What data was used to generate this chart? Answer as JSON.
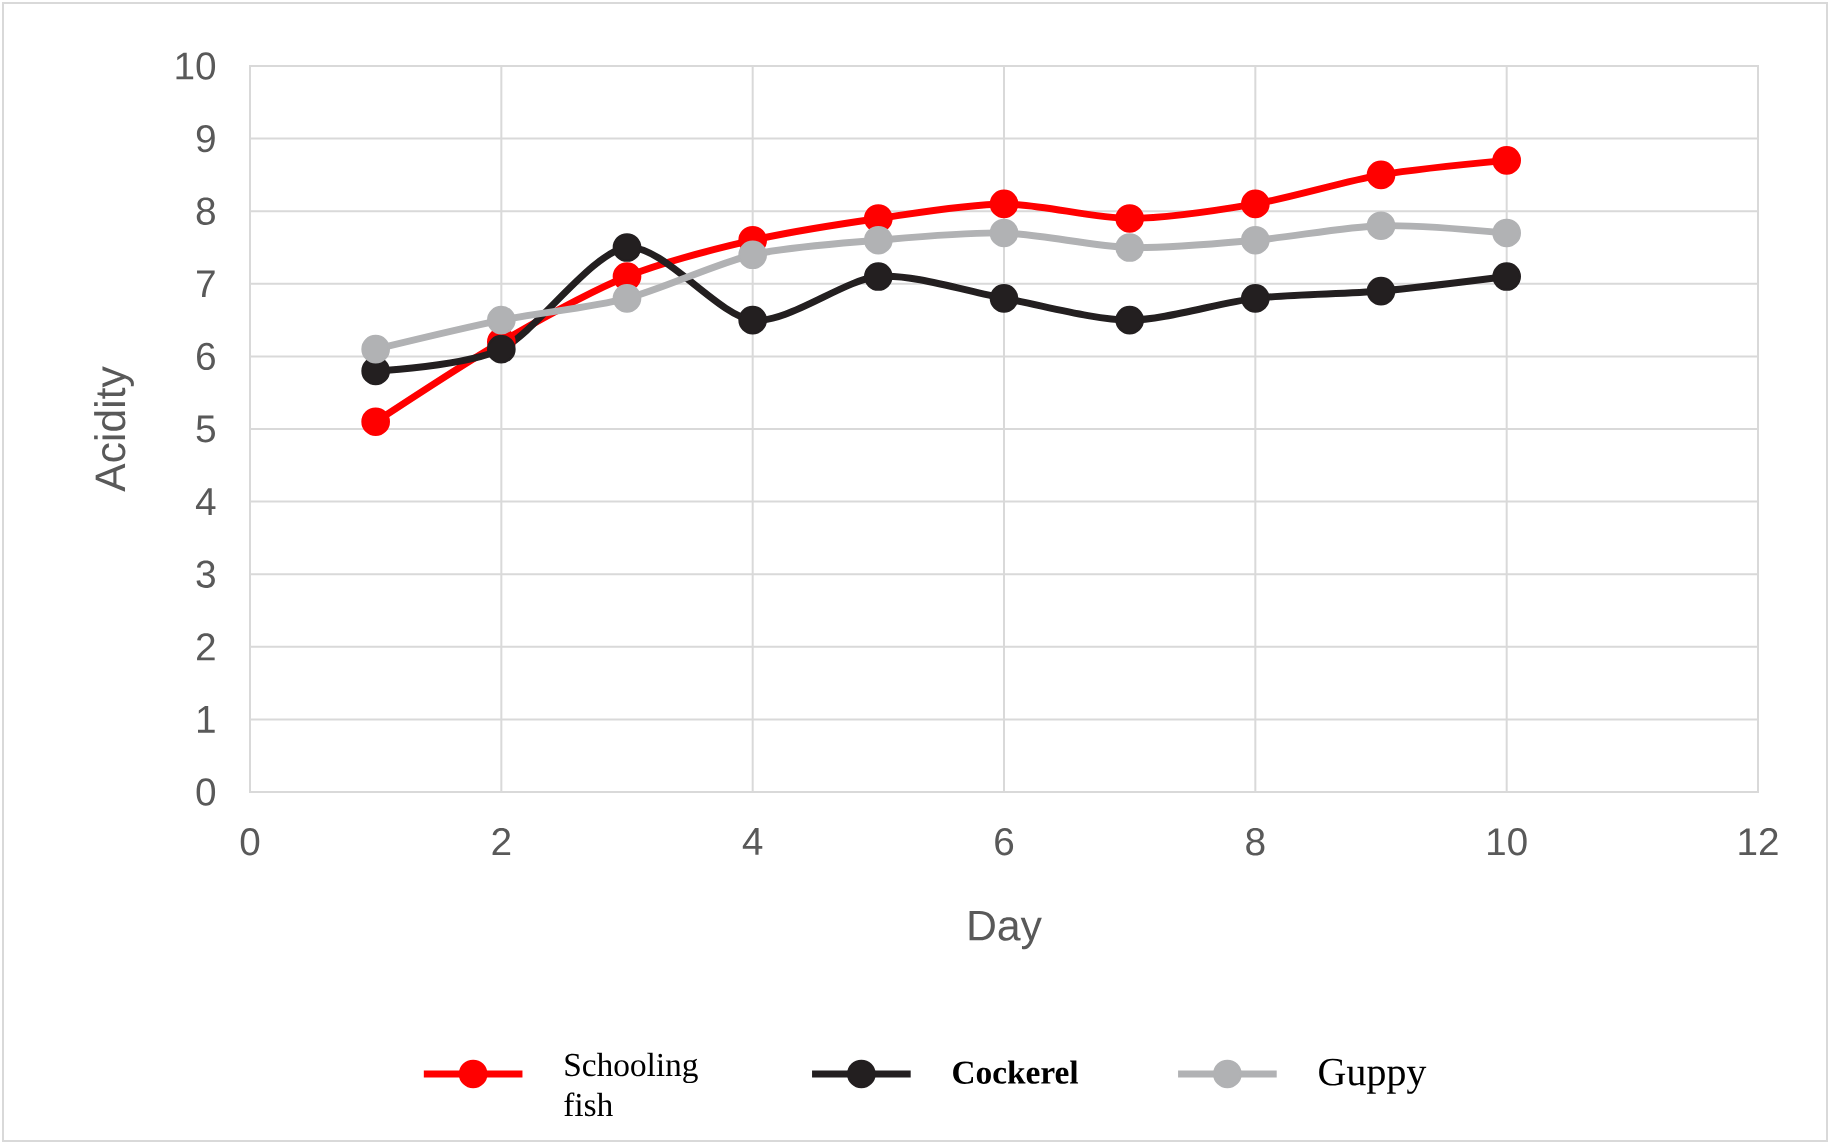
{
  "chart_data": {
    "type": "line",
    "xlabel": "Day",
    "ylabel": "Acidity",
    "x": [
      1,
      2,
      3,
      4,
      5,
      6,
      7,
      8,
      9,
      10
    ],
    "series": [
      {
        "name": "Schooling fish",
        "color": "#ff0000",
        "values": [
          5.1,
          6.2,
          7.1,
          7.6,
          7.9,
          8.1,
          7.9,
          8.1,
          8.5,
          8.7
        ]
      },
      {
        "name": "Cockerel",
        "color": "#231f20",
        "values": [
          5.8,
          6.1,
          7.5,
          6.5,
          7.1,
          6.8,
          6.5,
          6.8,
          6.9,
          7.1
        ]
      },
      {
        "name": "Guppy",
        "color": "#b1b2b4",
        "values": [
          6.1,
          6.5,
          6.8,
          7.4,
          7.6,
          7.7,
          7.5,
          7.6,
          7.8,
          7.7
        ]
      }
    ],
    "xlim": [
      0,
      12
    ],
    "ylim": [
      0,
      10
    ],
    "xticks": [
      0,
      2,
      4,
      6,
      8,
      10,
      12
    ],
    "yticks": [
      0,
      1,
      2,
      3,
      4,
      5,
      6,
      7,
      8,
      9,
      10
    ],
    "grid": true,
    "legend": "bottom",
    "marker": "circle",
    "line_style": "solid"
  }
}
